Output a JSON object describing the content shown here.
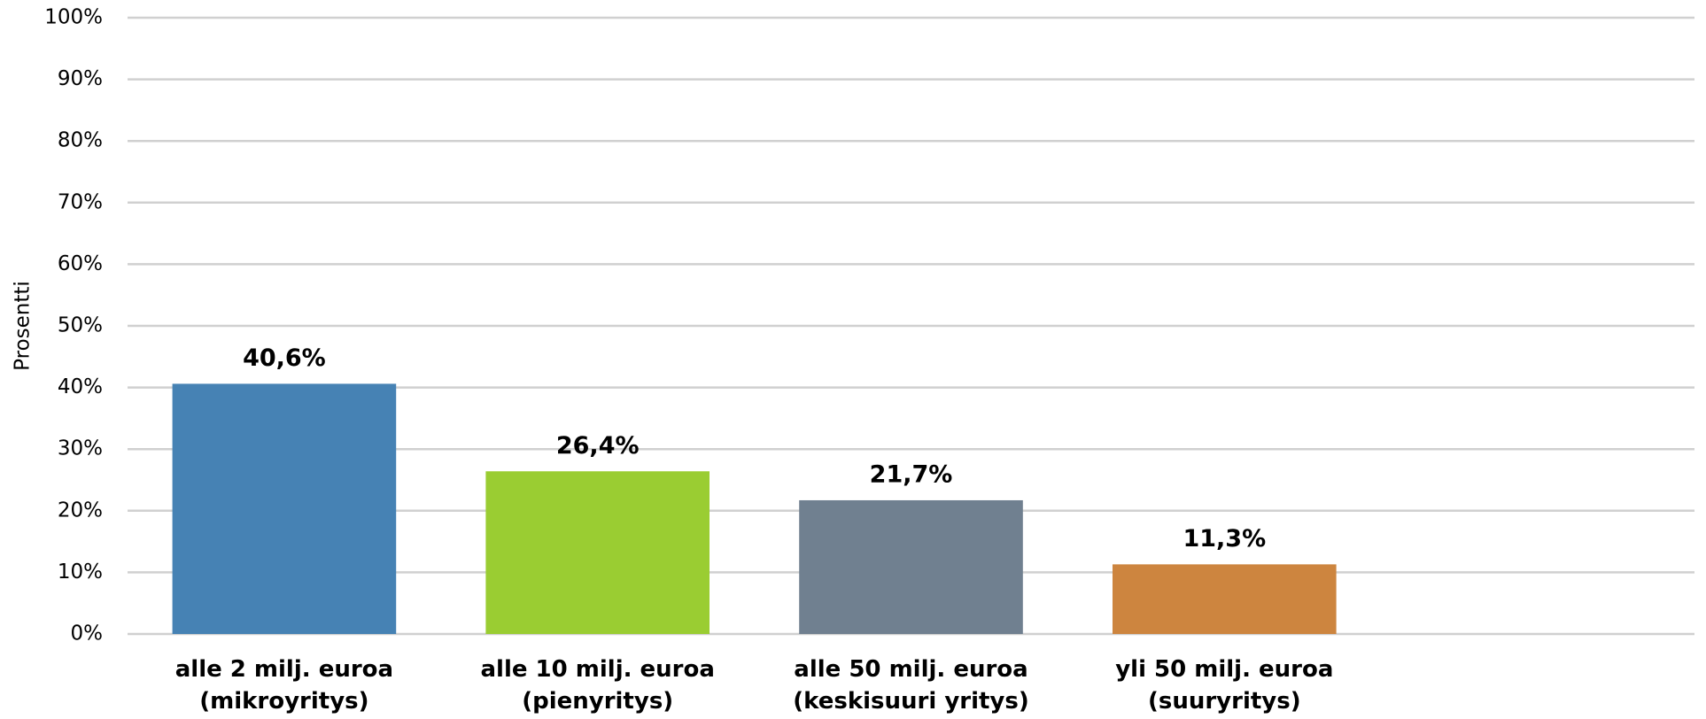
{
  "chart_data": {
    "type": "bar",
    "y_label": "Prosentti",
    "categories": [
      [
        "alle 2 milj. euroa",
        "(mikroyritys)"
      ],
      [
        "alle 10 milj. euroa",
        "(pienyritys)"
      ],
      [
        "alle 50 milj. euroa",
        "(keskisuuri yritys)"
      ],
      [
        "yli 50 milj. euroa",
        "(suuryritys)"
      ],
      null
    ],
    "values": [
      40.6,
      26.4,
      21.7,
      11.3,
      null
    ],
    "value_labels": [
      "40,6%",
      "26,4%",
      "21,7%",
      "11,3%",
      null
    ],
    "colors": [
      "#4682b4",
      "#9acd32",
      "#708090",
      "#cd853f",
      null
    ],
    "ylim": [
      0,
      100
    ],
    "yticks": [
      {
        "value": 0,
        "label": "0%"
      },
      {
        "value": 10,
        "label": "10%"
      },
      {
        "value": 20,
        "label": "20%"
      },
      {
        "value": 30,
        "label": "30%"
      },
      {
        "value": 40,
        "label": "40%"
      },
      {
        "value": 50,
        "label": "50%"
      },
      {
        "value": 60,
        "label": "60%"
      },
      {
        "value": 70,
        "label": "70%"
      },
      {
        "value": 80,
        "label": "80%"
      },
      {
        "value": 90,
        "label": "90%"
      },
      {
        "value": 100,
        "label": "100%"
      }
    ],
    "grid": true
  }
}
